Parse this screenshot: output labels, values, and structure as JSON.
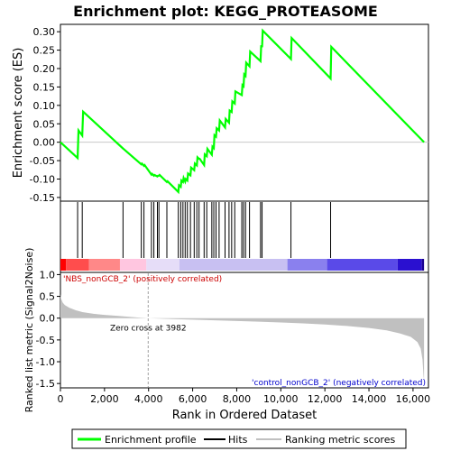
{
  "chart_data": {
    "type": "line",
    "title": "Enrichment plot: KEGG_PROTEASOME",
    "enrichment": {
      "ylabel": "Enrichment score (ES)",
      "ylim": [
        -0.16,
        0.32
      ],
      "yticks": [
        -0.15,
        -0.1,
        -0.05,
        0.0,
        0.05,
        0.1,
        0.15,
        0.2,
        0.25,
        0.3
      ],
      "ytick_labels": [
        "-0.15",
        "-0.10",
        "-0.05",
        "0.00",
        "0.05",
        "0.10",
        "0.15",
        "0.20",
        "0.25",
        "0.30"
      ],
      "series": [
        {
          "name": "Enrichment profile",
          "color": "#00ff00",
          "x": [
            0,
            780,
            820,
            990,
            1030,
            2840,
            2880,
            3670,
            3700,
            3790,
            3820,
            4130,
            4160,
            4240,
            4270,
            4400,
            4430,
            4470,
            4500,
            4830,
            4860,
            5350,
            5380,
            5460,
            5490,
            5560,
            5590,
            5660,
            5690,
            5760,
            5790,
            5900,
            5930,
            6070,
            6100,
            6190,
            6220,
            6290,
            6320,
            6520,
            6550,
            6640,
            6670,
            6870,
            6900,
            6960,
            6990,
            7060,
            7090,
            7200,
            7230,
            7470,
            7500,
            7650,
            7680,
            7770,
            7800,
            7910,
            7940,
            8230,
            8260,
            8310,
            8340,
            8400,
            8430,
            8580,
            8610,
            9080,
            9110,
            9150,
            9180,
            10460,
            10490,
            12260,
            12290,
            16500
          ],
          "y": [
            0.0,
            -0.043,
            0.032,
            0.018,
            0.083,
            -0.017,
            -0.019,
            -0.06,
            -0.058,
            -0.064,
            -0.062,
            -0.088,
            -0.086,
            -0.091,
            -0.089,
            -0.093,
            -0.091,
            -0.091,
            -0.089,
            -0.108,
            -0.106,
            -0.135,
            -0.117,
            -0.121,
            -0.104,
            -0.108,
            -0.097,
            -0.107,
            -0.1,
            -0.104,
            -0.085,
            -0.09,
            -0.069,
            -0.076,
            -0.058,
            -0.063,
            -0.041,
            -0.045,
            -0.045,
            -0.062,
            -0.033,
            -0.038,
            -0.018,
            -0.034,
            -0.012,
            -0.016,
            0.019,
            0.015,
            0.038,
            0.032,
            0.059,
            0.04,
            0.063,
            0.053,
            0.086,
            0.082,
            0.111,
            0.105,
            0.138,
            0.128,
            0.155,
            0.152,
            0.184,
            0.18,
            0.216,
            0.206,
            0.246,
            0.22,
            0.263,
            0.258,
            0.303,
            0.226,
            0.283,
            0.173,
            0.259,
            0.0
          ]
        }
      ]
    },
    "hits": {
      "name": "Hits",
      "color": "#000000",
      "positions": [
        780,
        990,
        2840,
        3670,
        3790,
        4130,
        4240,
        4400,
        4470,
        4830,
        5350,
        5460,
        5560,
        5660,
        5760,
        5900,
        6070,
        6190,
        6290,
        6520,
        6640,
        6870,
        6960,
        7060,
        7200,
        7470,
        7650,
        7770,
        7910,
        8230,
        8310,
        8400,
        8580,
        9080,
        9150,
        10460,
        12260
      ]
    },
    "color_bar": {
      "segments": [
        {
          "from": 0,
          "to": 250,
          "color": "#ff0000"
        },
        {
          "from": 250,
          "to": 1300,
          "color": "#ff4d4d"
        },
        {
          "from": 1300,
          "to": 2700,
          "color": "#ff8888"
        },
        {
          "from": 2700,
          "to": 3900,
          "color": "#ffc6e0"
        },
        {
          "from": 3900,
          "to": 5400,
          "color": "#e6ddf8"
        },
        {
          "from": 5400,
          "to": 10300,
          "color": "#c8c0f2"
        },
        {
          "from": 10300,
          "to": 12100,
          "color": "#8a80ee"
        },
        {
          "from": 12100,
          "to": 15300,
          "color": "#5a4ae8"
        },
        {
          "from": 15300,
          "to": 16400,
          "color": "#2a10d0"
        },
        {
          "from": 16400,
          "to": 16500,
          "color": "#1a0090"
        }
      ]
    },
    "ranked_metric": {
      "name": "Ranking metric scores",
      "ylabel": "Ranked list metric (Signal2Noise)",
      "ylim": [
        -1.6,
        1.05
      ],
      "yticks": [
        -1.5,
        -1.0,
        -0.5,
        0.0,
        0.5,
        1.0
      ],
      "ytick_labels": [
        "-1.5",
        "-1.0",
        "-0.5",
        "0.0",
        "0.5",
        "1.0"
      ],
      "color": "#c0c0c0",
      "x": [
        0,
        30,
        100,
        200,
        400,
        700,
        1000,
        1500,
        2000,
        2500,
        3000,
        3500,
        3982,
        5000,
        6000,
        7000,
        8000,
        9000,
        10000,
        11000,
        12000,
        13000,
        14000,
        14800,
        15400,
        15900,
        16200,
        16350,
        16430,
        16480,
        16500
      ],
      "y": [
        0.55,
        0.45,
        0.36,
        0.3,
        0.24,
        0.18,
        0.14,
        0.1,
        0.075,
        0.055,
        0.035,
        0.015,
        0.0,
        -0.02,
        -0.035,
        -0.05,
        -0.065,
        -0.08,
        -0.1,
        -0.12,
        -0.145,
        -0.18,
        -0.225,
        -0.28,
        -0.35,
        -0.43,
        -0.55,
        -0.7,
        -0.95,
        -1.35,
        -1.4
      ],
      "pos_label": "'NBS_nonGCB_2' (positively correlated)",
      "neg_label": "'control_nonGCB_2' (negatively correlated)",
      "zero_cross_label": "Zero cross at 3982",
      "zero_cross": 3982
    },
    "xaxis": {
      "label": "Rank in Ordered Dataset",
      "xlim": [
        0,
        16700
      ],
      "ticks": [
        0,
        2000,
        4000,
        6000,
        8000,
        10000,
        12000,
        14000,
        16000
      ],
      "tick_labels": [
        "0",
        "2,000",
        "4,000",
        "6,000",
        "8,000",
        "10,000",
        "12,000",
        "14,000",
        "16,000"
      ]
    },
    "legend": {
      "placement": "bottom",
      "items": [
        {
          "label": "Enrichment profile",
          "color": "#00ff00"
        },
        {
          "label": "Hits",
          "color": "#000000"
        },
        {
          "label": "Ranking metric scores",
          "color": "#c0c0c0"
        }
      ]
    }
  }
}
